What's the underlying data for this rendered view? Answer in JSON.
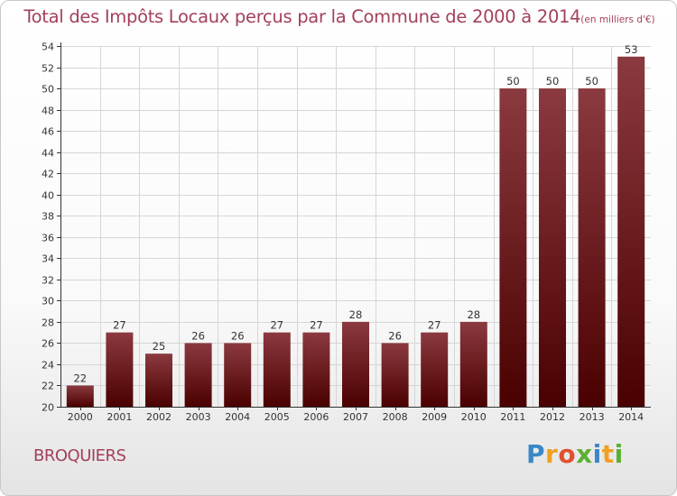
{
  "header": {
    "title": "Total des Impôts Locaux perçus par la Commune de 2000 à 2014",
    "unit": "(en milliers d'€)"
  },
  "footer": {
    "commune": "BROQUIERS",
    "logo_letters": [
      "P",
      "r",
      "o",
      "x",
      "i",
      "t",
      "i"
    ],
    "logo_colors": [
      "#3a87c8",
      "#f0a020",
      "#e05030",
      "#5ab030",
      "#3a87c8",
      "#f0a020",
      "#5ab030"
    ]
  },
  "colors": {
    "bar_top": "#8b3a3f",
    "bar_bottom": "#4a0000",
    "grid": "#d6d6d6",
    "axis": "#333333"
  },
  "chart_data": {
    "type": "bar",
    "title": "Total des Impôts Locaux perçus par la Commune de 2000 à 2014",
    "categories": [
      "2000",
      "2001",
      "2002",
      "2003",
      "2004",
      "2005",
      "2006",
      "2007",
      "2008",
      "2009",
      "2010",
      "2011",
      "2012",
      "2013",
      "2014"
    ],
    "values": [
      22,
      27,
      25,
      26,
      26,
      27,
      27,
      28,
      26,
      27,
      28,
      50,
      50,
      50,
      53
    ],
    "ylim": [
      20,
      54
    ],
    "ytick_step": 2,
    "grid": true,
    "xlabel": "",
    "ylabel": ""
  }
}
